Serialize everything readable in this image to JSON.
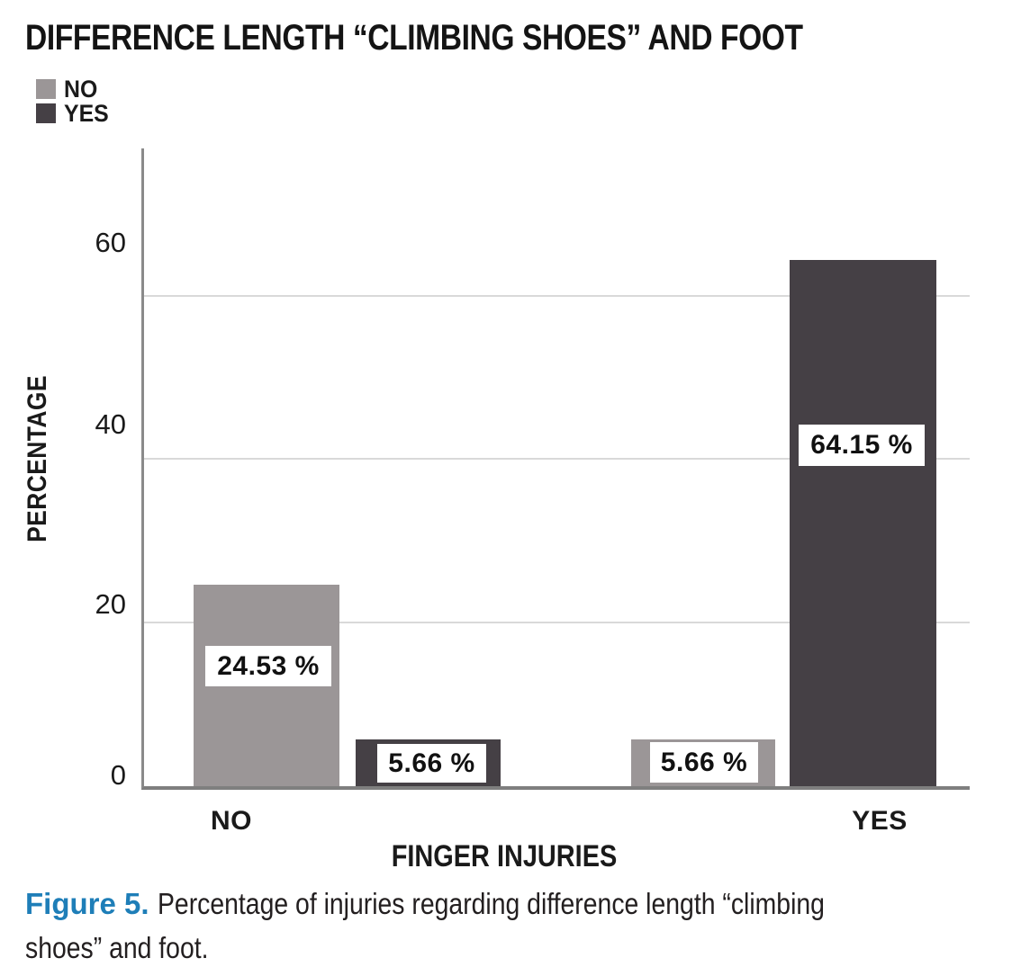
{
  "title": "DIFFERENCE LENGTH “CLIMBING SHOES” AND FOOT",
  "legend": {
    "items": [
      {
        "label": "NO",
        "color": "#9b9697"
      },
      {
        "label": "YES",
        "color": "#454045"
      }
    ]
  },
  "y_axis": {
    "label": "PERCENTAGE",
    "ticks": [
      "60",
      "40",
      "20",
      "0"
    ]
  },
  "x_axis": {
    "label": "FINGER INJURIES",
    "categories": [
      "NO",
      "YES"
    ]
  },
  "caption": {
    "label": "Figure 5.",
    "line1": "Percentage of injuries regarding difference length “climbing",
    "line2": "shoes” and foot.",
    "accent_color": "#1e7eb8"
  },
  "colors": {
    "gridline": "#d9d9d9",
    "axis": "#7f7f7f",
    "bar_no": "#9b9697",
    "bar_yes": "#454045",
    "text": "#1a1a1a"
  },
  "chart_data": {
    "type": "bar",
    "title": "DIFFERENCE LENGTH “CLIMBING SHOES” AND FOOT",
    "categories": [
      "NO",
      "YES"
    ],
    "series": [
      {
        "name": "NO",
        "color": "#9b9697",
        "values": [
          24.53,
          5.66
        ]
      },
      {
        "name": "YES",
        "color": "#454045",
        "values": [
          5.66,
          64.15
        ]
      }
    ],
    "value_labels": [
      [
        "24.53 %",
        "5.66 %"
      ],
      [
        "5.66 %",
        "64.15 %"
      ]
    ],
    "xlabel": "FINGER INJURIES",
    "ylabel": "PERCENTAGE",
    "yticks": [
      0,
      20,
      40,
      60
    ],
    "ylim": [
      0,
      77.7
    ],
    "grid": "horizontal",
    "legend_position": "top-left"
  }
}
